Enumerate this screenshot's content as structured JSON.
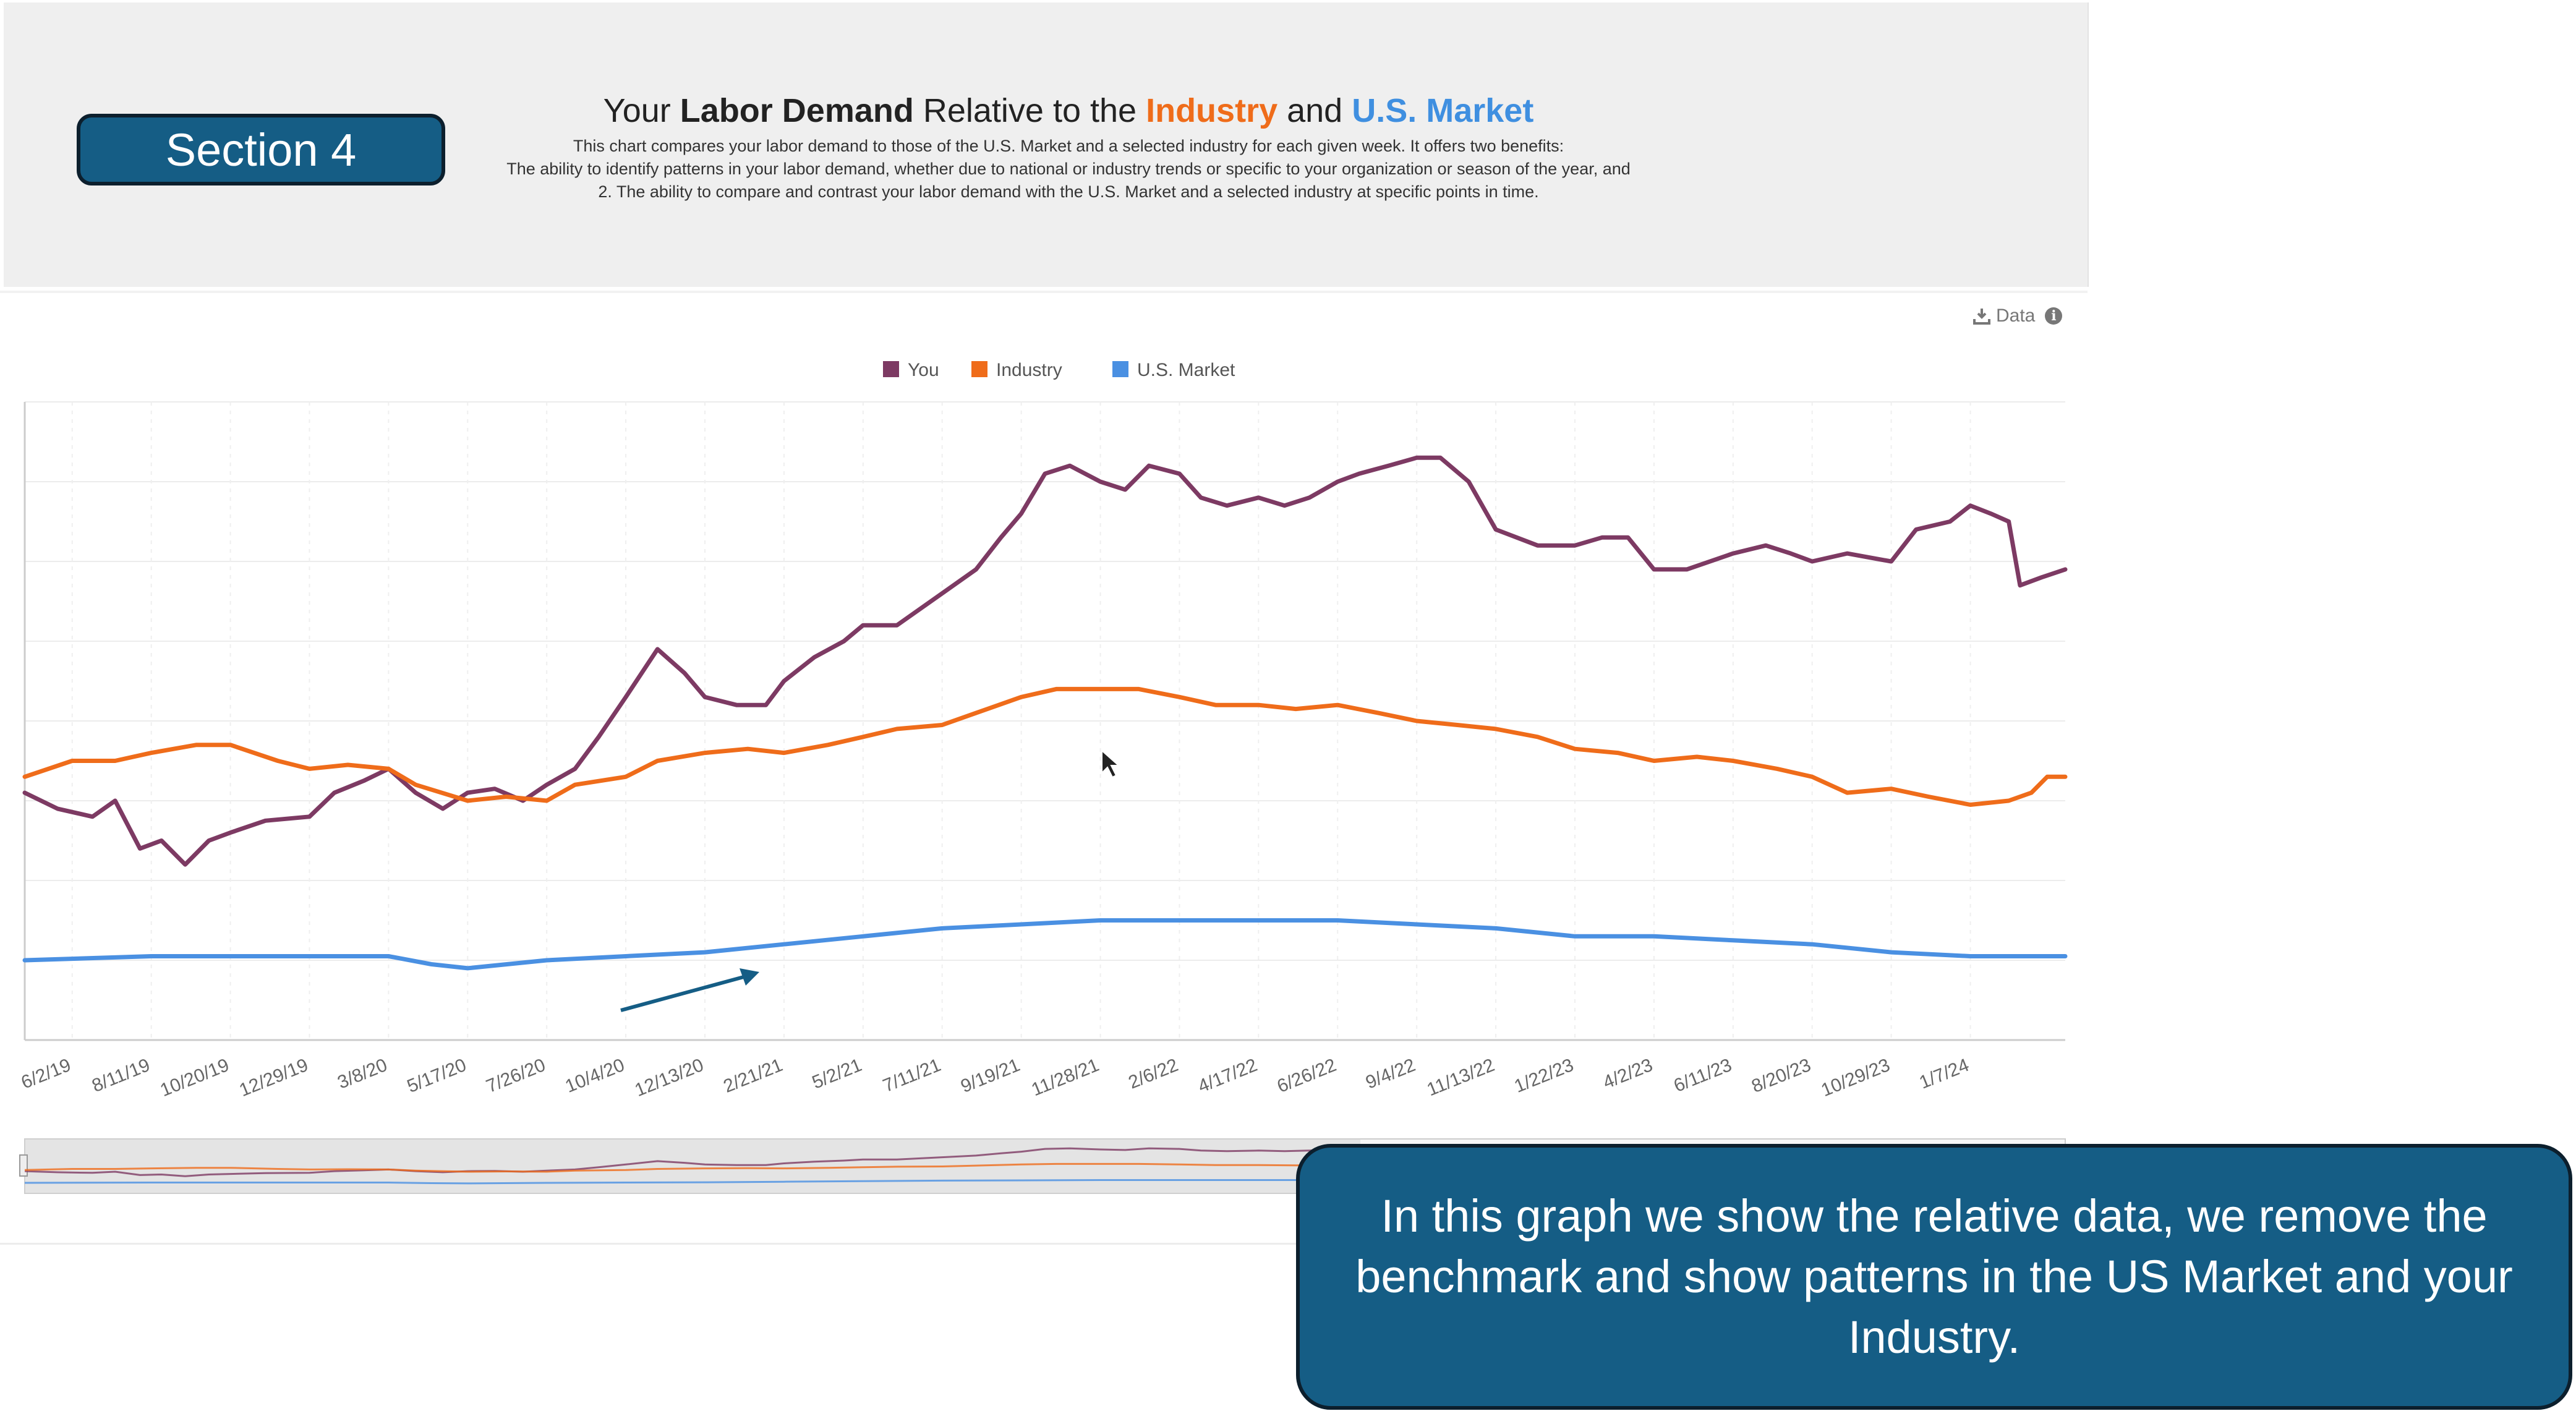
{
  "header": {
    "section_label": "Section 4",
    "title_prefix": "Your ",
    "title_bold": "Labor Demand",
    "title_mid": " Relative to the ",
    "title_industry": "Industry",
    "title_and": " and ",
    "title_market": "U.S. Market",
    "description_lines": [
      "This chart compares your labor demand to those of the U.S. Market and a selected industry for each given week. It offers two benefits:",
      "The ability to identify patterns in your labor demand, whether due to national or industry trends or specific to your organization or season of the year, and",
      "2. The ability to compare and contrast your labor demand with the U.S. Market and a selected industry at specific points in time."
    ]
  },
  "toolbar": {
    "data_label": "Data",
    "download_icon": "download-icon",
    "info_icon": "info-icon"
  },
  "callout": {
    "text": "In this graph we show the relative data, we remove the benchmark and show patterns in the US Market and your Industry."
  },
  "colors": {
    "you": "#7d3a63",
    "industry": "#ef6c1a",
    "market": "#4a90e2",
    "accent": "#155d85"
  },
  "chart_data": {
    "type": "line",
    "title": "",
    "xlabel": "",
    "ylabel": "",
    "grid": true,
    "legend_position": "top-center",
    "x_tick_labels": [
      "6/2/19",
      "8/11/19",
      "10/20/19",
      "12/29/19",
      "3/8/20",
      "5/17/20",
      "7/26/20",
      "10/4/20",
      "12/13/20",
      "2/21/21",
      "5/2/21",
      "7/11/21",
      "9/19/21",
      "11/28/21",
      "2/6/22",
      "4/17/22",
      "6/26/22",
      "9/4/22",
      "11/13/22",
      "1/22/23",
      "4/2/23",
      "6/11/23",
      "8/20/23",
      "10/29/23",
      "1/7/24"
    ],
    "x_range": [
      "2019-04-21",
      "2024-03-31"
    ],
    "series": [
      {
        "name": "You",
        "color": "#7d3a63",
        "points": [
          [
            "2019-04-21",
            62
          ],
          [
            "2019-05-20",
            58
          ],
          [
            "2019-06-20",
            56
          ],
          [
            "2019-07-10",
            60
          ],
          [
            "2019-08-01",
            48
          ],
          [
            "2019-08-20",
            50
          ],
          [
            "2019-09-10",
            44
          ],
          [
            "2019-10-01",
            50
          ],
          [
            "2019-10-20",
            52
          ],
          [
            "2019-11-20",
            55
          ],
          [
            "2019-12-29",
            56
          ],
          [
            "2020-01-20",
            62
          ],
          [
            "2020-02-15",
            65
          ],
          [
            "2020-03-08",
            68
          ],
          [
            "2020-04-01",
            62
          ],
          [
            "2020-04-25",
            58
          ],
          [
            "2020-05-17",
            62
          ],
          [
            "2020-06-10",
            63
          ],
          [
            "2020-07-05",
            60
          ],
          [
            "2020-07-26",
            64
          ],
          [
            "2020-08-20",
            68
          ],
          [
            "2020-09-10",
            76
          ],
          [
            "2020-10-04",
            86
          ],
          [
            "2020-11-01",
            98
          ],
          [
            "2020-11-25",
            92
          ],
          [
            "2020-12-13",
            86
          ],
          [
            "2021-01-10",
            84
          ],
          [
            "2021-02-05",
            84
          ],
          [
            "2021-02-21",
            90
          ],
          [
            "2021-03-20",
            96
          ],
          [
            "2021-04-15",
            100
          ],
          [
            "2021-05-02",
            104
          ],
          [
            "2021-06-01",
            104
          ],
          [
            "2021-07-11",
            112
          ],
          [
            "2021-08-10",
            118
          ],
          [
            "2021-09-01",
            126
          ],
          [
            "2021-09-19",
            132
          ],
          [
            "2021-10-10",
            142
          ],
          [
            "2021-11-01",
            144
          ],
          [
            "2021-11-28",
            140
          ],
          [
            "2021-12-20",
            138
          ],
          [
            "2022-01-10",
            144
          ],
          [
            "2022-02-06",
            142
          ],
          [
            "2022-02-25",
            136
          ],
          [
            "2022-03-20",
            134
          ],
          [
            "2022-04-17",
            136
          ],
          [
            "2022-05-10",
            134
          ],
          [
            "2022-06-01",
            136
          ],
          [
            "2022-06-26",
            140
          ],
          [
            "2022-07-15",
            142
          ],
          [
            "2022-08-10",
            144
          ],
          [
            "2022-09-04",
            146
          ],
          [
            "2022-09-25",
            146
          ],
          [
            "2022-10-20",
            140
          ],
          [
            "2022-11-13",
            128
          ],
          [
            "2022-12-20",
            124
          ],
          [
            "2023-01-22",
            124
          ],
          [
            "2023-02-15",
            126
          ],
          [
            "2023-03-10",
            126
          ],
          [
            "2023-04-02",
            118
          ],
          [
            "2023-05-01",
            118
          ],
          [
            "2023-06-11",
            122
          ],
          [
            "2023-07-10",
            124
          ],
          [
            "2023-08-01",
            122
          ],
          [
            "2023-08-20",
            120
          ],
          [
            "2023-09-20",
            122
          ],
          [
            "2023-10-29",
            120
          ],
          [
            "2023-11-20",
            128
          ],
          [
            "2023-12-20",
            130
          ],
          [
            "2024-01-07",
            134
          ],
          [
            "2024-01-25",
            132
          ],
          [
            "2024-02-10",
            130
          ],
          [
            "2024-02-20",
            114
          ],
          [
            "2024-03-10",
            116
          ],
          [
            "2024-03-31",
            118
          ]
        ]
      },
      {
        "name": "Industry",
        "color": "#ef6c1a",
        "points": [
          [
            "2019-04-21",
            66
          ],
          [
            "2019-06-02",
            70
          ],
          [
            "2019-07-10",
            70
          ],
          [
            "2019-08-11",
            72
          ],
          [
            "2019-09-20",
            74
          ],
          [
            "2019-10-20",
            74
          ],
          [
            "2019-12-01",
            70
          ],
          [
            "2019-12-29",
            68
          ],
          [
            "2020-02-01",
            69
          ],
          [
            "2020-03-08",
            68
          ],
          [
            "2020-04-01",
            64
          ],
          [
            "2020-05-17",
            60
          ],
          [
            "2020-06-20",
            61
          ],
          [
            "2020-07-26",
            60
          ],
          [
            "2020-08-20",
            64
          ],
          [
            "2020-10-04",
            66
          ],
          [
            "2020-11-01",
            70
          ],
          [
            "2020-12-13",
            72
          ],
          [
            "2021-01-20",
            73
          ],
          [
            "2021-02-21",
            72
          ],
          [
            "2021-04-01",
            74
          ],
          [
            "2021-05-02",
            76
          ],
          [
            "2021-06-01",
            78
          ],
          [
            "2021-07-11",
            79
          ],
          [
            "2021-08-10",
            82
          ],
          [
            "2021-09-19",
            86
          ],
          [
            "2021-10-20",
            88
          ],
          [
            "2021-11-28",
            88
          ],
          [
            "2022-01-01",
            88
          ],
          [
            "2022-02-06",
            86
          ],
          [
            "2022-03-10",
            84
          ],
          [
            "2022-04-17",
            84
          ],
          [
            "2022-05-20",
            83
          ],
          [
            "2022-06-26",
            84
          ],
          [
            "2022-08-01",
            82
          ],
          [
            "2022-09-04",
            80
          ],
          [
            "2022-10-10",
            79
          ],
          [
            "2022-11-13",
            78
          ],
          [
            "2022-12-20",
            76
          ],
          [
            "2023-01-22",
            73
          ],
          [
            "2023-03-01",
            72
          ],
          [
            "2023-04-02",
            70
          ],
          [
            "2023-05-10",
            71
          ],
          [
            "2023-06-11",
            70
          ],
          [
            "2023-07-20",
            68
          ],
          [
            "2023-08-20",
            66
          ],
          [
            "2023-09-20",
            62
          ],
          [
            "2023-10-29",
            63
          ],
          [
            "2023-12-01",
            61
          ],
          [
            "2024-01-07",
            59
          ],
          [
            "2024-02-10",
            60
          ],
          [
            "2024-03-01",
            62
          ],
          [
            "2024-03-15",
            66
          ],
          [
            "2024-03-31",
            66
          ]
        ]
      },
      {
        "name": "U.S. Market",
        "color": "#4a90e2",
        "points": [
          [
            "2019-04-21",
            20
          ],
          [
            "2019-08-11",
            21
          ],
          [
            "2019-12-29",
            21
          ],
          [
            "2020-03-08",
            21
          ],
          [
            "2020-04-15",
            19
          ],
          [
            "2020-05-17",
            18
          ],
          [
            "2020-07-26",
            20
          ],
          [
            "2020-10-04",
            21
          ],
          [
            "2020-12-13",
            22
          ],
          [
            "2021-02-21",
            24
          ],
          [
            "2021-05-02",
            26
          ],
          [
            "2021-07-11",
            28
          ],
          [
            "2021-09-19",
            29
          ],
          [
            "2021-11-28",
            30
          ],
          [
            "2022-02-06",
            30
          ],
          [
            "2022-04-17",
            30
          ],
          [
            "2022-06-26",
            30
          ],
          [
            "2022-09-04",
            29
          ],
          [
            "2022-11-13",
            28
          ],
          [
            "2023-01-22",
            26
          ],
          [
            "2023-04-02",
            26
          ],
          [
            "2023-06-11",
            25
          ],
          [
            "2023-08-20",
            24
          ],
          [
            "2023-10-29",
            22
          ],
          [
            "2024-01-07",
            21
          ],
          [
            "2024-03-15",
            21
          ],
          [
            "2024-03-31",
            21
          ]
        ]
      }
    ],
    "ylim": [
      0,
      160
    ]
  }
}
